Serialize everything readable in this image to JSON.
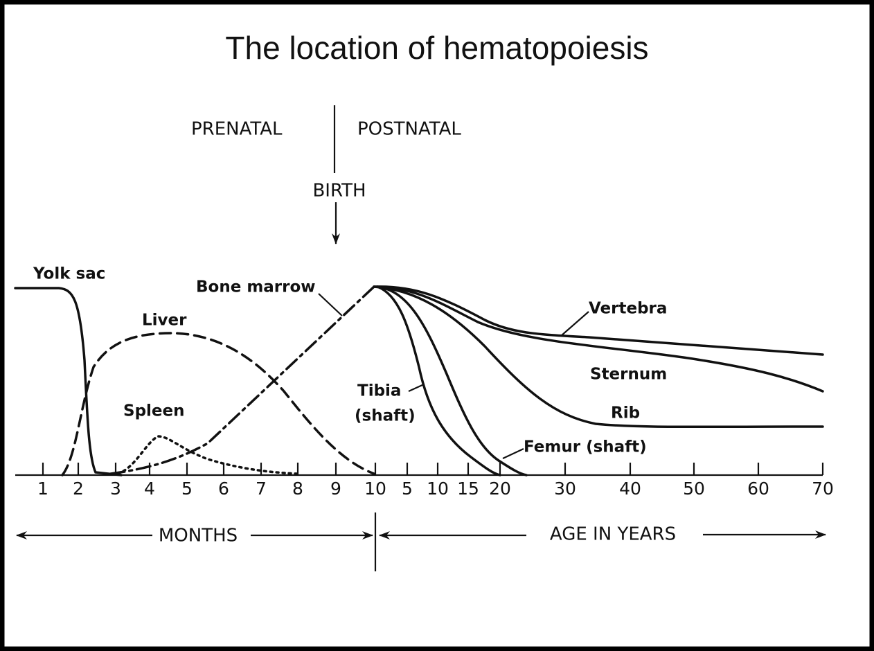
{
  "title": "The location of hematopoiesis",
  "header": {
    "prenatal": "PRENATAL",
    "postnatal": "POSTNATAL",
    "birth": "BIRTH"
  },
  "curves": {
    "yolk_sac": "Yolk sac",
    "liver": "Liver",
    "spleen": "Spleen",
    "bone_marrow": "Bone marrow",
    "vertebra": "Vertebra",
    "sternum": "Sternum",
    "rib": "Rib",
    "tibia": [
      "Tibia",
      "(shaft)"
    ],
    "femur": "Femur (shaft)"
  },
  "axis": {
    "month_ticks": [
      "1",
      "2",
      "3",
      "4",
      "5",
      "6",
      "7",
      "8",
      "9",
      "10"
    ],
    "year_ticks": [
      "5",
      "10",
      "15",
      "20",
      "30",
      "40",
      "50",
      "60",
      "70"
    ],
    "months_label": "MONTHS",
    "years_label": "AGE IN YEARS"
  }
}
